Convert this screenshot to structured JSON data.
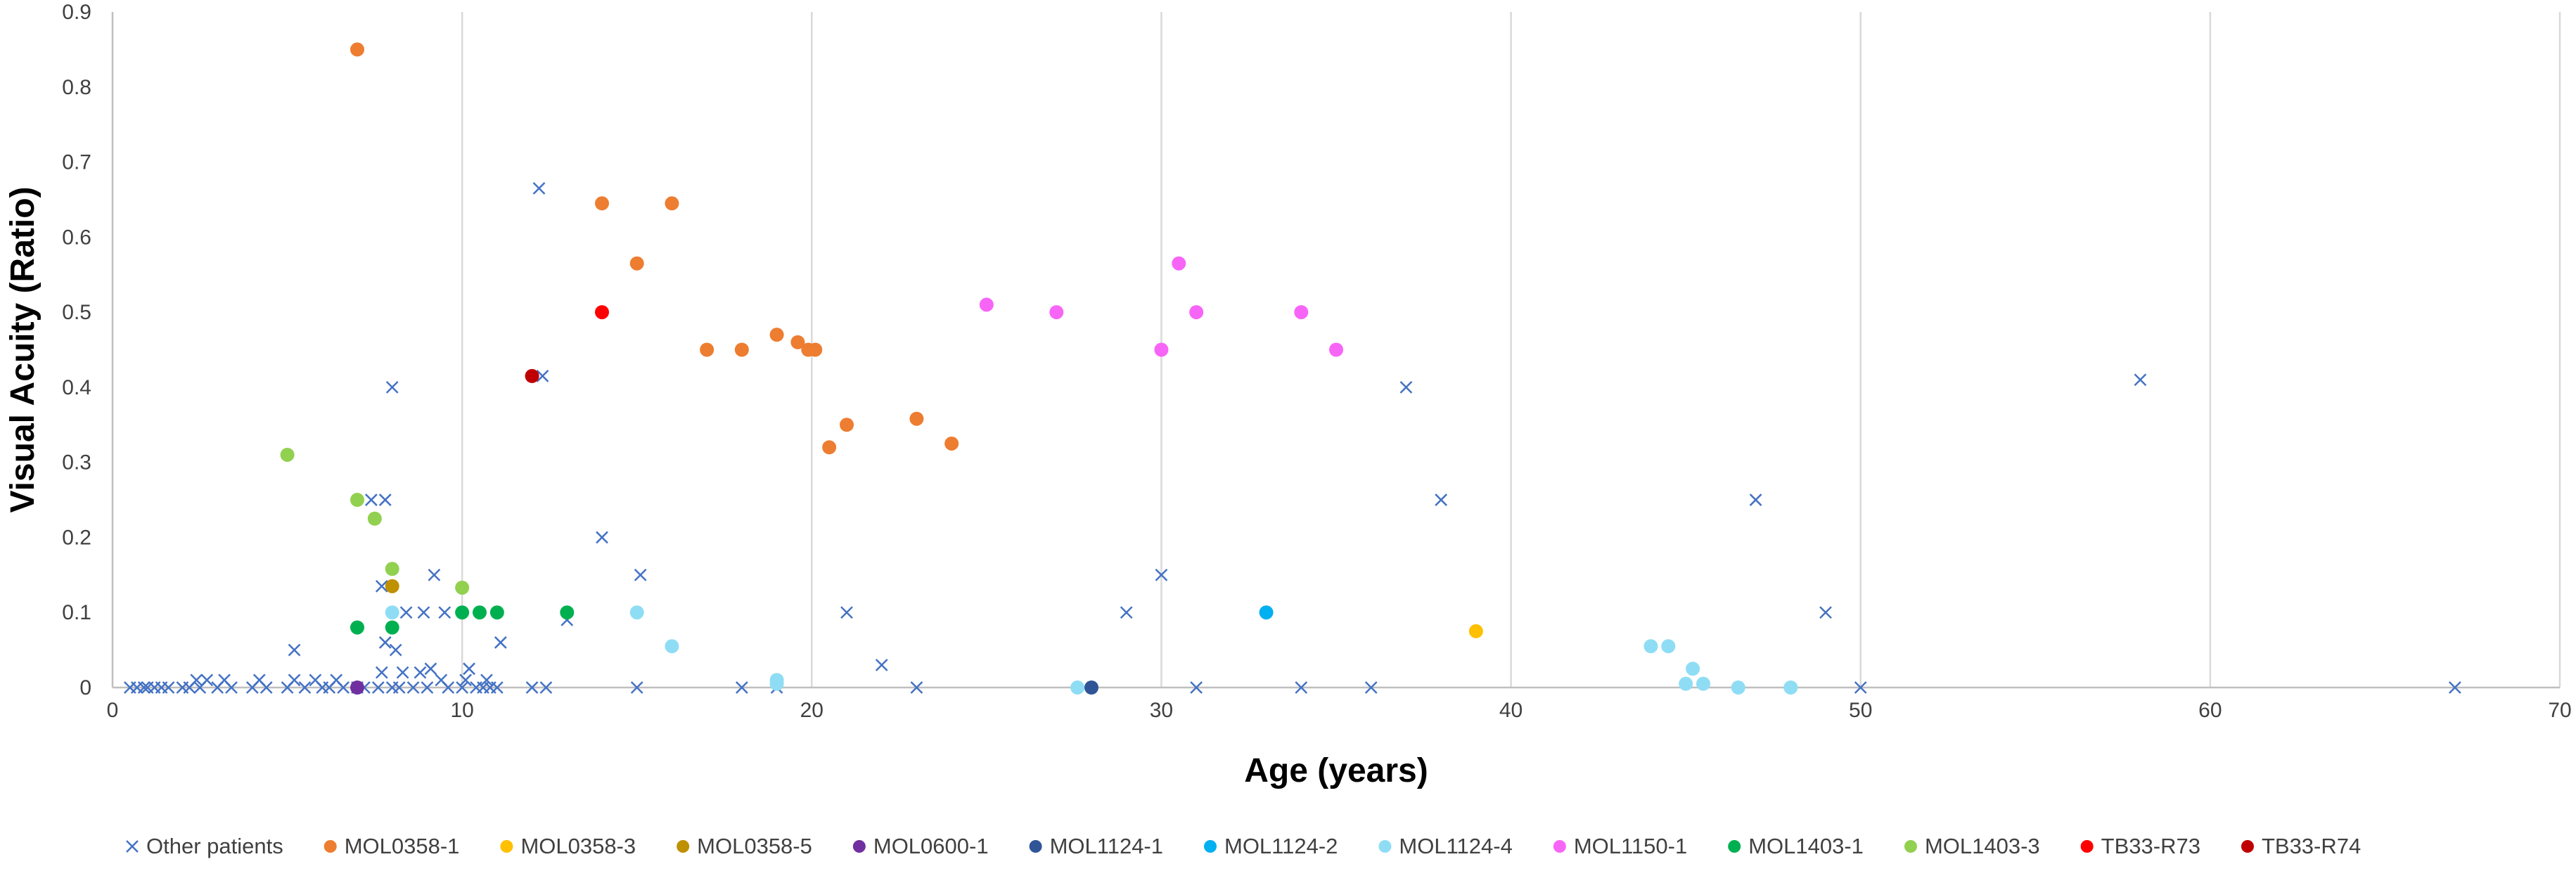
{
  "chart_data": {
    "type": "scatter",
    "xlabel": "Age (years)",
    "ylabel": "Visual Acuity (Ratio)",
    "xlim": [
      0,
      70
    ],
    "ylim": [
      0,
      0.9
    ],
    "xticks": [
      0,
      10,
      20,
      30,
      40,
      50,
      60,
      70
    ],
    "yticks": [
      0,
      0.1,
      0.2,
      0.3,
      0.4,
      0.5,
      0.6,
      0.7,
      0.8,
      0.9
    ],
    "grid": "vertical",
    "legend_position": "bottom",
    "series": [
      {
        "name": "Other patients",
        "marker": "x",
        "color": "#4472C4",
        "points": [
          [
            0.5,
            0
          ],
          [
            0.7,
            0
          ],
          [
            0.9,
            0
          ],
          [
            1.0,
            0
          ],
          [
            1.2,
            0
          ],
          [
            1.4,
            0
          ],
          [
            1.6,
            0
          ],
          [
            2.0,
            0
          ],
          [
            2.2,
            0
          ],
          [
            2.4,
            0.01
          ],
          [
            2.5,
            0
          ],
          [
            2.7,
            0.01
          ],
          [
            3.0,
            0
          ],
          [
            3.2,
            0.01
          ],
          [
            3.4,
            0
          ],
          [
            4.0,
            0
          ],
          [
            4.2,
            0.01
          ],
          [
            4.4,
            0
          ],
          [
            5.0,
            0
          ],
          [
            5.2,
            0.01
          ],
          [
            5.2,
            0.05
          ],
          [
            5.5,
            0
          ],
          [
            5.8,
            0.01
          ],
          [
            6.0,
            0
          ],
          [
            6.2,
            0
          ],
          [
            6.4,
            0.01
          ],
          [
            6.6,
            0
          ],
          [
            7.0,
            0
          ],
          [
            7.2,
            0
          ],
          [
            7.4,
            0.25
          ],
          [
            7.6,
            0
          ],
          [
            7.7,
            0.02
          ],
          [
            7.7,
            0.135
          ],
          [
            7.8,
            0.06
          ],
          [
            7.8,
            0.25
          ],
          [
            8.0,
            0.4
          ],
          [
            8.0,
            0
          ],
          [
            8.1,
            0.05
          ],
          [
            8.2,
            0
          ],
          [
            8.3,
            0.02
          ],
          [
            8.4,
            0.1
          ],
          [
            8.6,
            0
          ],
          [
            8.8,
            0.02
          ],
          [
            8.9,
            0.1
          ],
          [
            9.0,
            0
          ],
          [
            9.1,
            0.025
          ],
          [
            9.2,
            0.15
          ],
          [
            9.4,
            0.01
          ],
          [
            9.5,
            0.1
          ],
          [
            9.6,
            0
          ],
          [
            10.0,
            0
          ],
          [
            10.1,
            0.01
          ],
          [
            10.2,
            0.025
          ],
          [
            10.4,
            0
          ],
          [
            10.6,
            0
          ],
          [
            10.7,
            0.01
          ],
          [
            10.8,
            0
          ],
          [
            11.0,
            0
          ],
          [
            11.1,
            0.06
          ],
          [
            12.0,
            0
          ],
          [
            12.2,
            0.665
          ],
          [
            12.3,
            0.415
          ],
          [
            12.4,
            0
          ],
          [
            13.0,
            0.09
          ],
          [
            14.0,
            0.2
          ],
          [
            15.0,
            0
          ],
          [
            15.1,
            0.15
          ],
          [
            18.0,
            0
          ],
          [
            19.0,
            0
          ],
          [
            21.0,
            0.1
          ],
          [
            22.0,
            0.03
          ],
          [
            23.0,
            0
          ],
          [
            29.0,
            0.1
          ],
          [
            30.0,
            0.15
          ],
          [
            31.0,
            0
          ],
          [
            34.0,
            0
          ],
          [
            36.0,
            0
          ],
          [
            37.0,
            0.4
          ],
          [
            38.0,
            0.25
          ],
          [
            47.0,
            0.25
          ],
          [
            49.0,
            0.1
          ],
          [
            50.0,
            0
          ],
          [
            58.0,
            0.41
          ],
          [
            67.0,
            0
          ]
        ]
      },
      {
        "name": "MOL0358-1",
        "marker": "o",
        "color": "#ED7D31",
        "points": [
          [
            7.0,
            0.85
          ],
          [
            14.0,
            0.645
          ],
          [
            15.0,
            0.565
          ],
          [
            16.0,
            0.645
          ],
          [
            17.0,
            0.45
          ],
          [
            18.0,
            0.45
          ],
          [
            19.0,
            0.47
          ],
          [
            19.6,
            0.46
          ],
          [
            19.9,
            0.45
          ],
          [
            20.1,
            0.45
          ],
          [
            20.5,
            0.32
          ],
          [
            21.0,
            0.35
          ],
          [
            23.0,
            0.358
          ],
          [
            24.0,
            0.325
          ]
        ]
      },
      {
        "name": "MOL0358-3",
        "marker": "o",
        "color": "#FFC000",
        "points": [
          [
            39.0,
            0.075
          ]
        ]
      },
      {
        "name": "MOL0358-5",
        "marker": "o",
        "color": "#BF9000",
        "points": [
          [
            8.0,
            0.135
          ]
        ]
      },
      {
        "name": "MOL0600-1",
        "marker": "o",
        "color": "#7030A0",
        "points": [
          [
            7.0,
            0
          ]
        ]
      },
      {
        "name": "MOL1124-1",
        "marker": "o",
        "color": "#2F5597",
        "points": [
          [
            28.0,
            0
          ]
        ]
      },
      {
        "name": "MOL1124-2",
        "marker": "o",
        "color": "#00B0F0",
        "points": [
          [
            33.0,
            0.1
          ]
        ]
      },
      {
        "name": "MOL1124-4",
        "marker": "o",
        "color": "#8FDDF5",
        "points": [
          [
            8.0,
            0.1
          ],
          [
            15.0,
            0.1
          ],
          [
            16.0,
            0.055
          ],
          [
            19.0,
            0.01
          ],
          [
            19.0,
            0.005
          ],
          [
            27.6,
            0
          ],
          [
            44.0,
            0.055
          ],
          [
            44.5,
            0.055
          ],
          [
            45.0,
            0.005
          ],
          [
            45.2,
            0.025
          ],
          [
            45.5,
            0.005
          ],
          [
            46.5,
            0
          ],
          [
            48.0,
            0
          ]
        ]
      },
      {
        "name": "MOL1150-1",
        "marker": "o",
        "color": "#F765F7",
        "points": [
          [
            25.0,
            0.51
          ],
          [
            27.0,
            0.5
          ],
          [
            30.0,
            0.45
          ],
          [
            30.5,
            0.565
          ],
          [
            31.0,
            0.5
          ],
          [
            34.0,
            0.5
          ],
          [
            35.0,
            0.45
          ]
        ]
      },
      {
        "name": "MOL1403-1",
        "marker": "o",
        "color": "#00B050",
        "points": [
          [
            7.0,
            0.08
          ],
          [
            8.0,
            0.08
          ],
          [
            10.0,
            0.1
          ],
          [
            10.5,
            0.1
          ],
          [
            11.0,
            0.1
          ],
          [
            13.0,
            0.1
          ]
        ]
      },
      {
        "name": "MOL1403-3",
        "marker": "o",
        "color": "#92D050",
        "points": [
          [
            5.0,
            0.31
          ],
          [
            7.0,
            0.25
          ],
          [
            7.5,
            0.225
          ],
          [
            8.0,
            0.158
          ],
          [
            10.0,
            0.133
          ]
        ]
      },
      {
        "name": "TB33-R73",
        "marker": "o",
        "color": "#FF0000",
        "points": [
          [
            14.0,
            0.5
          ]
        ]
      },
      {
        "name": "TB33-R74",
        "marker": "o",
        "color": "#C00000",
        "points": [
          [
            12.0,
            0.415
          ]
        ]
      }
    ]
  }
}
